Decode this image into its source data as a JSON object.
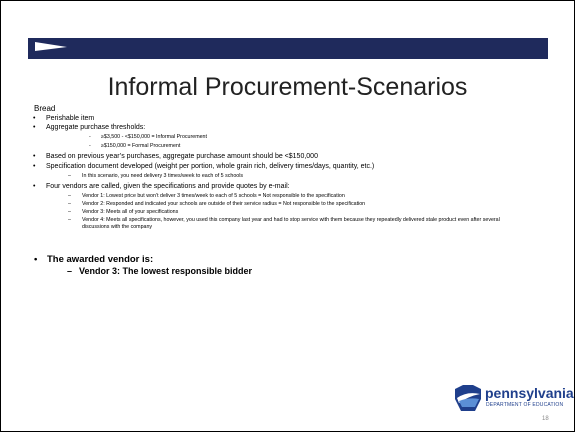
{
  "slide": {
    "title": "Informal Procurement-Scenarios",
    "section": "Bread",
    "bullets": [
      {
        "text": "Perishable item"
      },
      {
        "text": "Aggregate purchase thresholds:",
        "sub": [
          "≥$3,500 - <$150,000 = Informal Procurement",
          "≥$150,000 = Formal Procurement"
        ]
      },
      {
        "text": "Based on previous year’s purchases, aggregate purchase amount should be <$150,000"
      },
      {
        "text": "Specification document developed (weight per portion, whole grain rich, delivery times/days, quantity, etc.)",
        "sub": [
          "In this scenario, you need delivery 3 times/week to each of 5 schools"
        ]
      },
      {
        "text": "Four vendors are called, given the specifications and provide quotes by e-mail:",
        "sub": [
          "Vendor 1: Lowest price but won’t deliver 3 times/week to each of 5 schools = Not responsible to the specification",
          "Vendor 2: Responded and indicated your schools are outside of their service radius = Not responsible to the specification",
          "Vendor 3: Meets all of your specifications",
          "Vendor 4: Meets all specifications, however, you used this company last year and had to stop service with them because they repeatedly delivered  stale product even after several discussions with the company"
        ]
      }
    ],
    "awarded": "The awarded vendor is:",
    "awarded_sub": "Vendor 3: The lowest responsible bidder",
    "logo": {
      "name": "pennsylvania",
      "dept": "DEPARTMENT OF EDUCATION"
    },
    "page_number": "18"
  }
}
